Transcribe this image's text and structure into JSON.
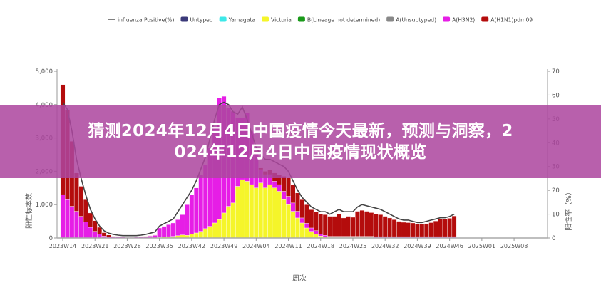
{
  "overlay": {
    "title_line1": "猜测2024年12月4日中国疫情今天最新，预测与洞察，2",
    "title_line2": "024年12月4日中国疫情现状概览"
  },
  "chart_data": {
    "type": "bar",
    "stacked": true,
    "xlabel": "周次",
    "ylabel": "阳性标本数",
    "y2label": "阳性率（%）",
    "ylim": [
      0,
      5000
    ],
    "y2lim": [
      0,
      70
    ],
    "yticks": [
      "0",
      "1,000",
      "2,000",
      "3,000",
      "4,000",
      "5,000"
    ],
    "y2ticks": [
      "0",
      "10",
      "20",
      "30",
      "40",
      "50",
      "60",
      "70"
    ],
    "xticks": [
      "2023W14",
      "2023W21",
      "2023W28",
      "2023W35",
      "2023W42",
      "2023W49",
      "2024W04",
      "2024W11",
      "2024W18",
      "2024W25",
      "2024W32",
      "2024W39",
      "2024W46",
      "2025W01",
      "2025W08"
    ],
    "first_week": "2023W14",
    "last_week_with_data": "2024W46",
    "legend_position": "top",
    "legend": [
      {
        "name": "influenza Positive(%)",
        "color": "#555555",
        "kind": "line"
      },
      {
        "name": "Untyped",
        "color": "#3b3a7a",
        "kind": "box"
      },
      {
        "name": "Yamagata",
        "color": "#3ee8e8",
        "kind": "box"
      },
      {
        "name": "Victoria",
        "color": "#f5f52a",
        "kind": "box"
      },
      {
        "name": "B(Lineage not determined)",
        "color": "#1a9a1a",
        "kind": "box"
      },
      {
        "name": "A(Unsubtyped)",
        "color": "#888888",
        "kind": "box"
      },
      {
        "name": "A(H3N2)",
        "color": "#e61ee6",
        "kind": "box"
      },
      {
        "name": "A(H1N1)pdm09",
        "color": "#b40c0c",
        "kind": "box"
      }
    ],
    "series": [
      {
        "name": "Victoria",
        "color": "#f5f52a",
        "values": [
          0,
          0,
          0,
          0,
          0,
          0,
          0,
          0,
          0,
          0,
          0,
          0,
          0,
          0,
          0,
          0,
          0,
          0,
          0,
          0,
          0,
          20,
          30,
          40,
          50,
          70,
          90,
          80,
          120,
          150,
          200,
          280,
          350,
          450,
          550,
          750,
          950,
          1050,
          1550,
          1750,
          1700,
          1600,
          1500,
          1650,
          1500,
          1600,
          1500,
          1400,
          1150,
          1000,
          800,
          600,
          450,
          300,
          200,
          120,
          60,
          30,
          20,
          20,
          20,
          20,
          20,
          20,
          20,
          20,
          20,
          20,
          10,
          10,
          10,
          10,
          10,
          10,
          10,
          10,
          10,
          10,
          10,
          10,
          10,
          10,
          10,
          10,
          10,
          10
        ]
      },
      {
        "name": "A(H3N2)",
        "color": "#e61ee6",
        "values": [
          1300,
          1150,
          950,
          800,
          650,
          480,
          320,
          200,
          120,
          60,
          30,
          50,
          35,
          25,
          20,
          20,
          25,
          35,
          45,
          60,
          80,
          280,
          320,
          360,
          400,
          480,
          610,
          920,
          1180,
          1350,
          1700,
          1920,
          2350,
          2850,
          3650,
          3500,
          2950,
          2750,
          2050,
          1850,
          2050,
          1600,
          1070,
          400,
          400,
          300,
          200,
          200,
          250,
          250,
          250,
          200,
          150,
          140,
          100,
          100,
          60,
          50,
          30,
          30,
          30,
          30,
          30,
          30,
          30,
          30,
          30,
          30,
          30,
          30,
          30,
          30,
          30,
          30,
          30,
          30,
          30,
          30,
          30,
          30,
          30,
          30,
          30,
          30,
          30,
          30
        ]
      },
      {
        "name": "A(H1N1)pdm09",
        "color": "#b40c0c",
        "values": [
          3300,
          2700,
          1950,
          1150,
          900,
          670,
          430,
          320,
          200,
          100,
          60,
          10,
          10,
          10,
          10,
          10,
          10,
          10,
          10,
          10,
          10,
          0,
          0,
          0,
          0,
          0,
          0,
          0,
          0,
          0,
          0,
          0,
          0,
          0,
          0,
          0,
          0,
          0,
          0,
          0,
          0,
          0,
          30,
          50,
          100,
          150,
          250,
          300,
          450,
          550,
          550,
          550,
          550,
          560,
          550,
          560,
          600,
          620,
          600,
          600,
          670,
          550,
          600,
          570,
          750,
          780,
          750,
          710,
          670,
          660,
          610,
          560,
          510,
          460,
          430,
          420,
          410,
          380,
          370,
          390,
          420,
          470,
          520,
          530,
          550,
          620
        ]
      },
      {
        "name": "influenza Positive(%)",
        "color": "#444444",
        "axis": "right",
        "values": [
          57,
          54,
          45,
          33,
          25,
          18,
          12,
          8,
          5,
          3,
          2,
          1.5,
          1.2,
          1,
          1,
          1,
          1,
          1.2,
          1.5,
          2,
          2.5,
          5,
          6,
          7,
          8,
          11,
          14,
          17,
          20,
          24,
          29,
          34,
          42,
          50,
          56,
          57,
          56,
          53,
          52,
          55,
          50,
          44,
          38,
          35,
          33,
          33,
          32,
          31,
          30,
          28,
          24,
          20,
          17,
          15,
          13,
          12,
          11,
          11,
          10,
          11,
          12,
          11,
          11,
          11,
          13,
          14,
          13.5,
          13,
          12.5,
          12,
          11,
          10,
          9,
          8,
          7.5,
          7.5,
          7,
          6.5,
          6.5,
          7,
          7.5,
          8,
          8.5,
          8.5,
          9,
          10
        ]
      }
    ]
  }
}
